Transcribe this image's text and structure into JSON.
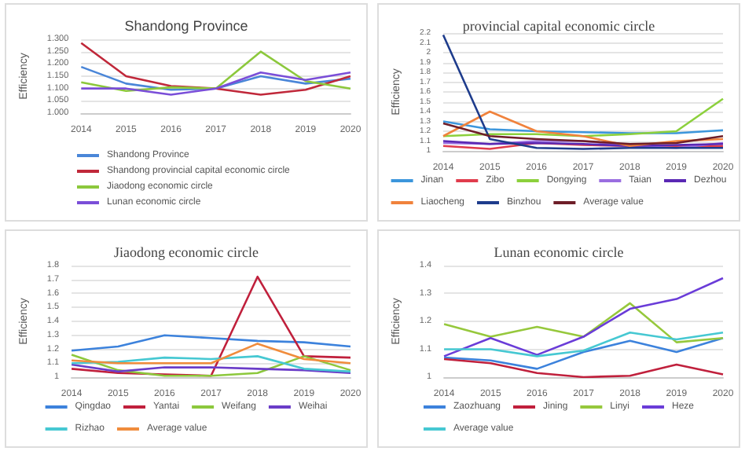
{
  "chart_data": [
    {
      "type": "line",
      "title": "Shandong Province",
      "ylabel": "Efficiency",
      "categories": [
        "2014",
        "2015",
        "2016",
        "2017",
        "2018",
        "2019",
        "2020"
      ],
      "ylim": [
        1.0,
        1.3
      ],
      "yticks": [
        {
          "value": 1.0,
          "label": "1.000"
        },
        {
          "value": 1.05,
          "label": "1.050"
        },
        {
          "value": 1.1,
          "label": "1.100"
        },
        {
          "value": 1.15,
          "label": "1.150"
        },
        {
          "value": 1.2,
          "label": "1.200"
        },
        {
          "value": 1.25,
          "label": "1.250"
        },
        {
          "value": 1.3,
          "label": "1.300"
        }
      ],
      "grid": "y",
      "legend": "bottom",
      "marker": "none",
      "series": [
        {
          "name": "Shandong Province",
          "color": "#4a86d8",
          "values": [
            1.188,
            1.12,
            1.095,
            1.1,
            1.15,
            1.12,
            1.14
          ]
        },
        {
          "name": "Shandong provincial capital economic circle",
          "color": "#c0283a",
          "values": [
            1.285,
            1.15,
            1.11,
            1.1,
            1.075,
            1.095,
            1.15
          ]
        },
        {
          "name": "Jiaodong economic circle",
          "color": "#8cc83c",
          "values": [
            1.125,
            1.09,
            1.105,
            1.1,
            1.25,
            1.13,
            1.1
          ]
        },
        {
          "name": "Lunan economic circle",
          "color": "#7a4ed8",
          "values": [
            1.1,
            1.1,
            1.075,
            1.1,
            1.165,
            1.135,
            1.165
          ]
        }
      ]
    },
    {
      "type": "line",
      "title": "provincial capital economic circle",
      "ylabel": "Efficiency",
      "categories": [
        "2014",
        "2015",
        "2016",
        "2017",
        "2018",
        "2019",
        "2020"
      ],
      "ylim": [
        1,
        2.2
      ],
      "yticks": [
        1,
        1.1,
        1.2,
        1.3,
        1.4,
        1.5,
        1.6,
        1.7,
        1.8,
        1.9,
        2,
        2.1,
        2.2
      ],
      "grid": "y",
      "legend": "bottom",
      "marker": "none",
      "series": [
        {
          "name": "Jinan",
          "color": "#3c96dc",
          "values": [
            1.3,
            1.22,
            1.2,
            1.19,
            1.18,
            1.18,
            1.21
          ]
        },
        {
          "name": "Zibo",
          "color": "#e03c4c",
          "values": [
            1.05,
            1.02,
            1.08,
            1.06,
            1.05,
            1.05,
            1.05
          ]
        },
        {
          "name": "Dongying",
          "color": "#8cd03c",
          "values": [
            1.15,
            1.17,
            1.17,
            1.15,
            1.17,
            1.2,
            1.53
          ]
        },
        {
          "name": "Taian",
          "color": "#9a6ee0",
          "values": [
            1.08,
            1.07,
            1.1,
            1.1,
            1.05,
            1.03,
            1.08
          ]
        },
        {
          "name": "Dezhou",
          "color": "#5a28b4",
          "values": [
            1.1,
            1.07,
            1.08,
            1.07,
            1.05,
            1.06,
            1.07
          ]
        },
        {
          "name": "Liaocheng",
          "color": "#f0823c",
          "values": [
            1.15,
            1.4,
            1.2,
            1.15,
            1.05,
            1.1,
            1.12
          ]
        },
        {
          "name": "Binzhou",
          "color": "#1e3c8c",
          "values": [
            2.18,
            1.12,
            1.03,
            1.02,
            1.03,
            1.03,
            1.03
          ]
        },
        {
          "name": "Average value",
          "color": "#6e1e28",
          "values": [
            1.28,
            1.15,
            1.12,
            1.1,
            1.07,
            1.08,
            1.15
          ]
        }
      ]
    },
    {
      "type": "line",
      "title": "Jiaodong economic circle",
      "ylabel": "Efficiency",
      "categories": [
        "2014",
        "2015",
        "2016",
        "2017",
        "2018",
        "2019",
        "2020"
      ],
      "ylim": [
        1,
        1.8
      ],
      "yticks": [
        1,
        1.1,
        1.2,
        1.3,
        1.4,
        1.5,
        1.6,
        1.7,
        1.8
      ],
      "grid": "y",
      "legend": "bottom",
      "marker": "none",
      "series": [
        {
          "name": "Qingdao",
          "color": "#3c82dc",
          "values": [
            1.19,
            1.22,
            1.3,
            1.28,
            1.26,
            1.25,
            1.22
          ]
        },
        {
          "name": "Yantai",
          "color": "#c0203c",
          "values": [
            1.06,
            1.03,
            1.02,
            1.01,
            1.72,
            1.15,
            1.14
          ]
        },
        {
          "name": "Weifang",
          "color": "#8cc83c",
          "values": [
            1.16,
            1.05,
            1.01,
            1.01,
            1.03,
            1.15,
            1.05
          ]
        },
        {
          "name": "Weihai",
          "color": "#6a3cc8",
          "values": [
            1.09,
            1.04,
            1.07,
            1.07,
            1.06,
            1.05,
            1.03
          ]
        },
        {
          "name": "Rizhao",
          "color": "#46c8d2",
          "values": [
            1.1,
            1.11,
            1.14,
            1.13,
            1.15,
            1.06,
            1.04
          ]
        },
        {
          "name": "Average value",
          "color": "#f08c3c",
          "values": [
            1.12,
            1.1,
            1.1,
            1.1,
            1.24,
            1.13,
            1.1
          ]
        }
      ]
    },
    {
      "type": "line",
      "title": "Lunan economic circle",
      "ylabel": "Efficiency",
      "categories": [
        "2014",
        "2015",
        "2016",
        "2017",
        "2018",
        "2019",
        "2020"
      ],
      "ylim": [
        1,
        1.4
      ],
      "yticks": [
        1,
        1.1,
        1.2,
        1.3,
        1.4
      ],
      "grid": "y",
      "legend": "bottom",
      "marker": "none",
      "series": [
        {
          "name": "Zaozhuang",
          "color": "#3c82dc",
          "values": [
            1.07,
            1.06,
            1.03,
            1.09,
            1.13,
            1.09,
            1.14
          ]
        },
        {
          "name": "Jining",
          "color": "#c0203c",
          "values": [
            1.065,
            1.05,
            1.015,
            1.0,
            1.005,
            1.045,
            1.01
          ]
        },
        {
          "name": "Linyi",
          "color": "#96c83c",
          "values": [
            1.19,
            1.145,
            1.18,
            1.145,
            1.265,
            1.125,
            1.14
          ]
        },
        {
          "name": "Heze",
          "color": "#6a3cd8",
          "values": [
            1.075,
            1.14,
            1.08,
            1.145,
            1.245,
            1.28,
            1.355
          ]
        },
        {
          "name": "Average value",
          "color": "#46c8d2",
          "values": [
            1.1,
            1.1,
            1.075,
            1.095,
            1.16,
            1.135,
            1.16
          ]
        }
      ]
    }
  ]
}
